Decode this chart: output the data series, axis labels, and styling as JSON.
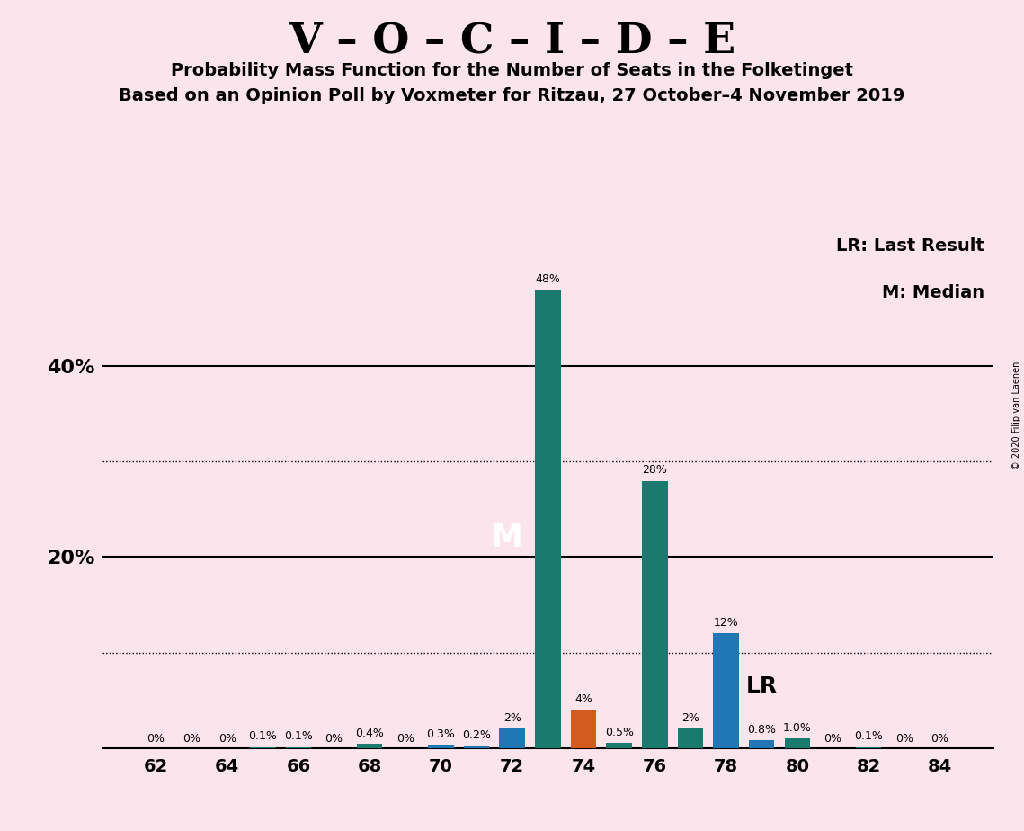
{
  "title": "V – O – C – I – D – E",
  "subtitle1": "Probability Mass Function for the Number of Seats in the Folketinget",
  "subtitle2": "Based on an Opinion Poll by Voxmeter for Ritzau, 27 October–4 November 2019",
  "copyright": "© 2020 Filip van Laenen",
  "background_color": "#fce4ec",
  "seats": [
    62,
    63,
    64,
    65,
    66,
    67,
    68,
    69,
    70,
    71,
    72,
    73,
    74,
    75,
    76,
    77,
    78,
    79,
    80,
    81,
    82,
    83,
    84
  ],
  "values": [
    0.0,
    0.0,
    0.0,
    0.1,
    0.1,
    0.0,
    0.4,
    0.0,
    0.3,
    0.2,
    2.0,
    48.0,
    4.0,
    0.5,
    28.0,
    2.0,
    12.0,
    0.8,
    1.0,
    0.0,
    0.1,
    0.0,
    0.0
  ],
  "labels": [
    "0%",
    "0%",
    "0%",
    "0.1%",
    "0.1%",
    "0%",
    "0.4%",
    "0%",
    "0.3%",
    "0.2%",
    "2%",
    "48%",
    "4%",
    "0.5%",
    "28%",
    "2%",
    "12%",
    "0.8%",
    "1.0%",
    "0%",
    "0.1%",
    "0%",
    "0%"
  ],
  "bar_color_map": {
    "62": "#1a7a6e",
    "63": "#1a7a6e",
    "64": "#1a7a6e",
    "65": "#1a7a6e",
    "66": "#1a7a6e",
    "67": "#1a7a6e",
    "68": "#1a7a6e",
    "69": "#1a7a6e",
    "70": "#2077b4",
    "71": "#2077b4",
    "72": "#2077b4",
    "73": "#1a7a6e",
    "74": "#d45b1e",
    "75": "#1a7a6e",
    "76": "#1a7a6e",
    "77": "#1a7a6e",
    "78": "#2077b4",
    "79": "#2077b4",
    "80": "#1a7a6e",
    "81": "#1a7a6e",
    "82": "#1a7a6e",
    "83": "#1a7a6e",
    "84": "#1a7a6e"
  },
  "median_seat": 72,
  "lr_seat": 78,
  "ylim": [
    0,
    54
  ],
  "xticks": [
    62,
    64,
    66,
    68,
    70,
    72,
    74,
    76,
    78,
    80,
    82,
    84
  ],
  "solid_gridlines": [
    20,
    40
  ],
  "dotted_gridlines": [
    10,
    30
  ],
  "legend_lr": "LR: Last Result",
  "legend_m": "M: Median"
}
